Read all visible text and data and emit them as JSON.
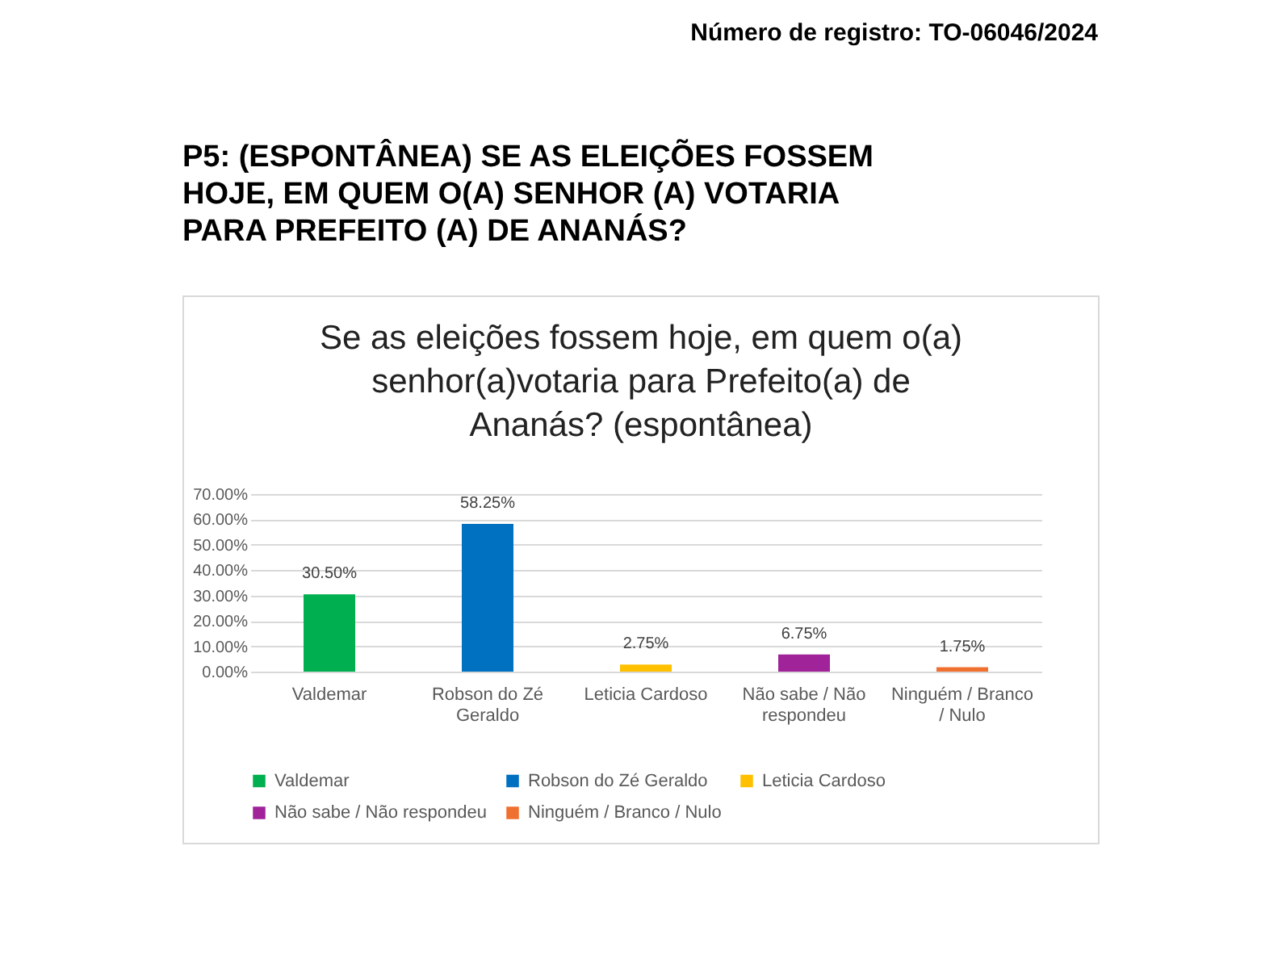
{
  "chart_data": {
    "type": "bar",
    "title": "P5: (ESPONTÂNEA) SE AS ELEIÇÕES FOSSEM HOJE, EM QUEM O(A) SENHOR (A) VOTARIA PARA PREFEITO (A) DE ANANÁS?",
    "subtitle": "Se as eleições fossem hoje, em quem o(a) senhor(a)votaria para Prefeito(a) de Ananás? (espontânea)",
    "annotations": [
      "Número de registro: TO-06046/2024"
    ],
    "categories": [
      "Valdemar",
      "Robson do Zé Geraldo",
      "Leticia Cardoso",
      "Não sabe / Não respondeu",
      "Ninguém / Branco / Nulo"
    ],
    "series": [
      {
        "name": "Valdemar",
        "color": "#00b050",
        "values": [
          30.5,
          null,
          null,
          null,
          null
        ],
        "value_labels": [
          "30.50%",
          null,
          null,
          null,
          null
        ]
      },
      {
        "name": "Robson do Zé Geraldo",
        "color": "#0070c0",
        "values": [
          null,
          58.25,
          null,
          null,
          null
        ],
        "value_labels": [
          null,
          "58.25%",
          null,
          null,
          null
        ]
      },
      {
        "name": "Leticia Cardoso",
        "color": "#ffc000",
        "values": [
          null,
          null,
          2.75,
          null,
          null
        ],
        "value_labels": [
          null,
          null,
          "2.75%",
          null,
          null
        ]
      },
      {
        "name": "Não sabe / Não respondeu",
        "color": "#a0239a",
        "values": [
          null,
          null,
          null,
          6.75,
          null
        ],
        "value_labels": [
          null,
          null,
          null,
          "6.75%",
          null
        ]
      },
      {
        "name": "Ninguém / Branco / Nulo",
        "color": "#f07030",
        "values": [
          null,
          null,
          null,
          null,
          1.75
        ],
        "value_labels": [
          null,
          null,
          null,
          null,
          "1.75%"
        ]
      }
    ],
    "ylim": [
      0,
      70
    ],
    "yticks": [
      {
        "value": 0,
        "label": "0.00%"
      },
      {
        "value": 10,
        "label": "10.00%"
      },
      {
        "value": 20,
        "label": "20.00%"
      },
      {
        "value": 30,
        "label": "30.00%"
      },
      {
        "value": 40,
        "label": "40.00%"
      },
      {
        "value": 50,
        "label": "50.00%"
      },
      {
        "value": 60,
        "label": "60.00%"
      },
      {
        "value": 70,
        "label": "70.00%"
      }
    ],
    "grid": "y",
    "legend": "bottom"
  }
}
